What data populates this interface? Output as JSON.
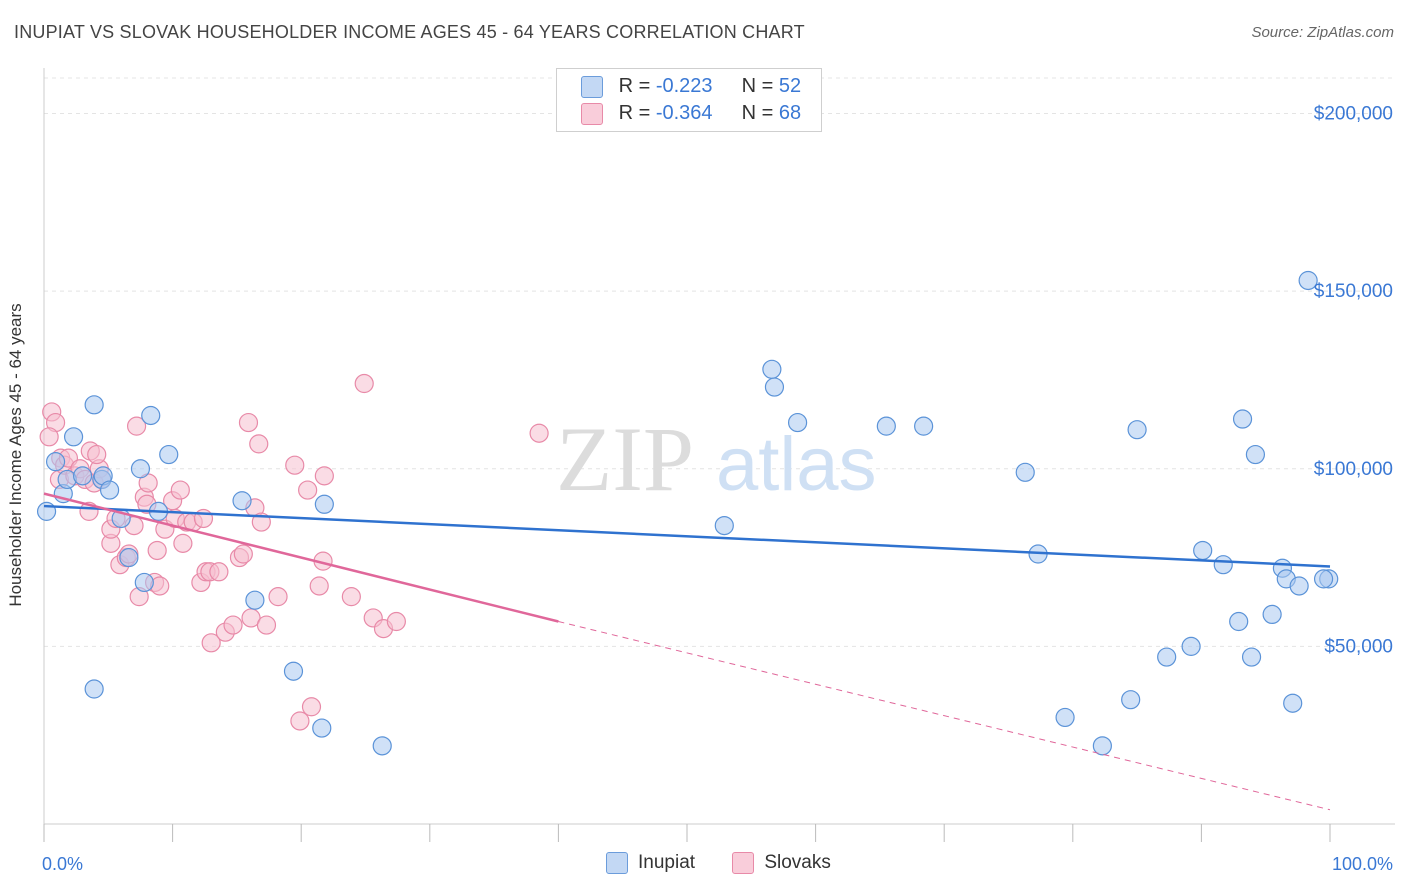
{
  "header": {
    "title": "INUPIAT VS SLOVAK HOUSEHOLDER INCOME AGES 45 - 64 YEARS CORRELATION CHART",
    "source": "Source: ZipAtlas.com"
  },
  "legend": {
    "rows": [
      {
        "r_label": "R =",
        "r_value": "-0.223",
        "n_label": "N =",
        "n_value": "52"
      },
      {
        "r_label": "R =",
        "r_value": "-0.364",
        "n_label": "N =",
        "n_value": "68"
      }
    ],
    "bottom": [
      "Inupiat",
      "Slovaks"
    ]
  },
  "watermark": {
    "zip": "ZIP",
    "atlas": "atlas"
  },
  "colors": {
    "inupiat_fill": "#aac8f0",
    "inupiat_stroke": "#5b93d8",
    "inupiat_line": "#2f72cf",
    "slovak_fill": "#f6bfd0",
    "slovak_stroke": "#e88aa8",
    "slovak_line": "#e0679a",
    "tick_text": "#3a78d4",
    "grid": "#e4e4e4"
  },
  "chart_data": {
    "type": "scatter",
    "title": "INUPIAT VS SLOVAK HOUSEHOLDER INCOME AGES 45 - 64 YEARS CORRELATION CHART",
    "xlabel": "",
    "ylabel": "Householder Income Ages 45 - 64 years",
    "xlim": [
      0,
      100
    ],
    "ylim": [
      0,
      210000
    ],
    "x_tick_labels": [
      "0.0%",
      "100.0%"
    ],
    "y_ticks": [
      50000,
      100000,
      150000,
      200000
    ],
    "y_tick_labels": [
      "$50,000",
      "$100,000",
      "$150,000",
      "$200,000"
    ],
    "grid": true,
    "legend_position": "top-center",
    "series": [
      {
        "name": "Inupiat",
        "points": [
          [
            0.2,
            88000
          ],
          [
            0.9,
            102000
          ],
          [
            1.5,
            93000
          ],
          [
            1.8,
            97000
          ],
          [
            2.3,
            109000
          ],
          [
            3.0,
            98000
          ],
          [
            3.9,
            118000
          ],
          [
            4.5,
            97000
          ],
          [
            4.6,
            98000
          ],
          [
            5.1,
            94000
          ],
          [
            6.0,
            86000
          ],
          [
            6.6,
            75000
          ],
          [
            7.5,
            100000
          ],
          [
            7.8,
            68000
          ],
          [
            8.3,
            115000
          ],
          [
            8.9,
            88000
          ],
          [
            9.7,
            104000
          ],
          [
            15.4,
            91000
          ],
          [
            16.4,
            63000
          ],
          [
            19.4,
            43000
          ],
          [
            21.6,
            27000
          ],
          [
            21.8,
            90000
          ],
          [
            26.3,
            22000
          ],
          [
            3.9,
            38000
          ],
          [
            52.9,
            84000
          ],
          [
            56.6,
            128000
          ],
          [
            56.8,
            123000
          ],
          [
            58.6,
            113000
          ],
          [
            65.5,
            112000
          ],
          [
            68.4,
            112000
          ],
          [
            76.3,
            99000
          ],
          [
            77.3,
            76000
          ],
          [
            79.4,
            30000
          ],
          [
            82.3,
            22000
          ],
          [
            84.5,
            35000
          ],
          [
            85.0,
            111000
          ],
          [
            87.3,
            47000
          ],
          [
            90.1,
            77000
          ],
          [
            89.2,
            50000
          ],
          [
            91.7,
            73000
          ],
          [
            92.9,
            57000
          ],
          [
            93.2,
            114000
          ],
          [
            93.9,
            47000
          ],
          [
            94.2,
            104000
          ],
          [
            95.5,
            59000
          ],
          [
            96.3,
            72000
          ],
          [
            96.6,
            69000
          ],
          [
            97.1,
            34000
          ],
          [
            97.6,
            67000
          ],
          [
            98.3,
            153000
          ],
          [
            99.9,
            69000
          ],
          [
            99.5,
            69000
          ]
        ],
        "trend": {
          "x0": 0,
          "y0": 89500,
          "x1": 100,
          "y1": 72500
        }
      },
      {
        "name": "Slovaks",
        "points": [
          [
            0.6,
            116000
          ],
          [
            0.9,
            113000
          ],
          [
            1.2,
            97000
          ],
          [
            1.3,
            103000
          ],
          [
            1.6,
            101000
          ],
          [
            1.9,
            103000
          ],
          [
            2.4,
            98000
          ],
          [
            2.8,
            100000
          ],
          [
            3.2,
            97000
          ],
          [
            3.5,
            88000
          ],
          [
            3.9,
            96000
          ],
          [
            3.6,
            105000
          ],
          [
            4.3,
            100000
          ],
          [
            4.1,
            104000
          ],
          [
            4.5,
            97000
          ],
          [
            5.2,
            79000
          ],
          [
            5.2,
            83000
          ],
          [
            5.6,
            86000
          ],
          [
            5.9,
            73000
          ],
          [
            6.4,
            75000
          ],
          [
            6.6,
            76000
          ],
          [
            7.0,
            84000
          ],
          [
            7.2,
            112000
          ],
          [
            7.4,
            64000
          ],
          [
            7.8,
            92000
          ],
          [
            8.0,
            90000
          ],
          [
            8.1,
            96000
          ],
          [
            8.6,
            68000
          ],
          [
            8.8,
            77000
          ],
          [
            9.0,
            67000
          ],
          [
            9.4,
            83000
          ],
          [
            10.0,
            91000
          ],
          [
            10.2,
            86000
          ],
          [
            10.6,
            94000
          ],
          [
            10.8,
            79000
          ],
          [
            11.1,
            85000
          ],
          [
            11.6,
            85000
          ],
          [
            12.2,
            68000
          ],
          [
            12.4,
            86000
          ],
          [
            12.6,
            71000
          ],
          [
            12.9,
            71000
          ],
          [
            13.0,
            51000
          ],
          [
            13.6,
            71000
          ],
          [
            14.1,
            54000
          ],
          [
            14.7,
            56000
          ],
          [
            15.2,
            75000
          ],
          [
            15.5,
            76000
          ],
          [
            15.9,
            113000
          ],
          [
            16.1,
            58000
          ],
          [
            16.4,
            89000
          ],
          [
            16.7,
            107000
          ],
          [
            16.9,
            85000
          ],
          [
            17.3,
            56000
          ],
          [
            18.2,
            64000
          ],
          [
            19.5,
            101000
          ],
          [
            20.5,
            94000
          ],
          [
            19.9,
            29000
          ],
          [
            20.8,
            33000
          ],
          [
            21.4,
            67000
          ],
          [
            21.7,
            74000
          ],
          [
            21.8,
            98000
          ],
          [
            23.9,
            64000
          ],
          [
            24.9,
            124000
          ],
          [
            25.6,
            58000
          ],
          [
            26.4,
            55000
          ],
          [
            27.4,
            57000
          ],
          [
            38.5,
            110000
          ],
          [
            0.4,
            109000
          ]
        ],
        "trend": {
          "x0": 0,
          "y0": 93000,
          "x1": 40,
          "y1": 57000
        },
        "trend_extension": {
          "x0": 40,
          "y0": 57000,
          "x1": 100,
          "y1": 4000
        }
      }
    ]
  }
}
